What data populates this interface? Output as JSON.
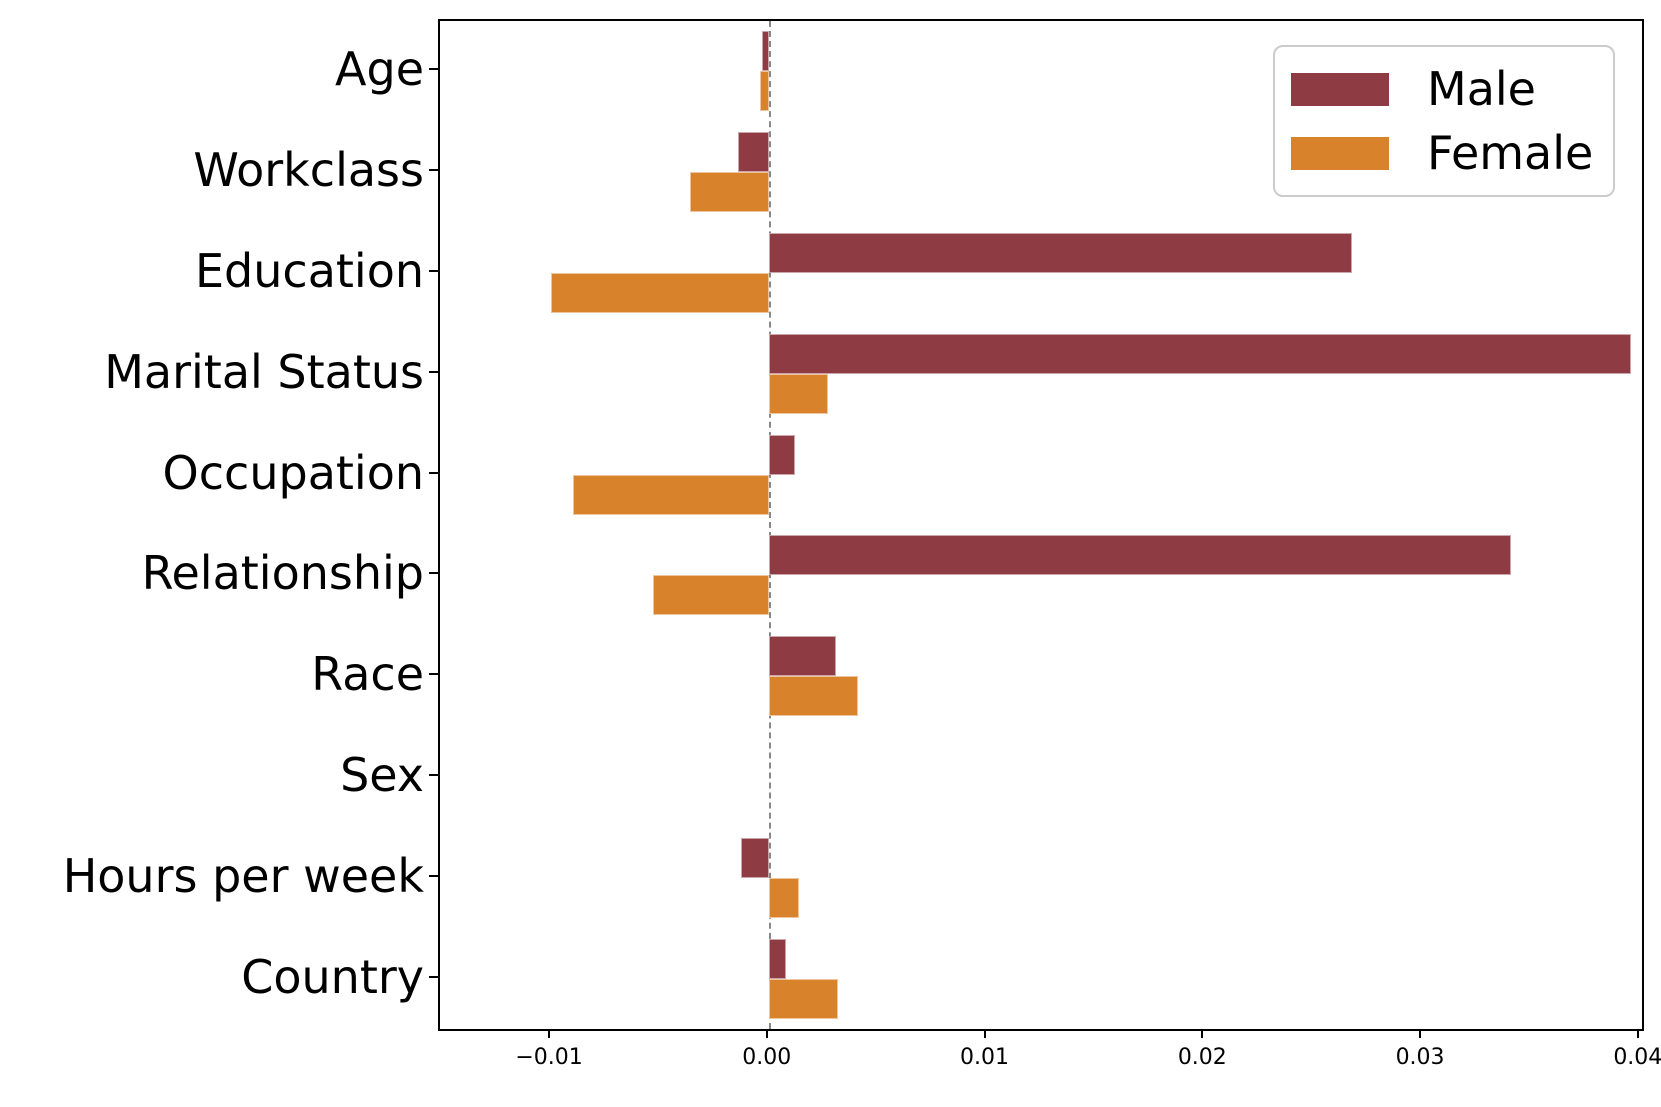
{
  "chart_data": {
    "type": "bar",
    "orientation": "horizontal",
    "title": "",
    "xlabel": "",
    "ylabel": "",
    "categories": [
      "Age",
      "Workclass",
      "Education",
      "Marital Status",
      "Occupation",
      "Relationship",
      "Race",
      "Sex",
      "Hours per week",
      "Country"
    ],
    "series": [
      {
        "name": "Male",
        "color": "#8E3B44",
        "values": [
          -0.0003,
          -0.0014,
          0.0268,
          0.0396,
          0.0012,
          0.0341,
          0.0031,
          0.0,
          -0.0013,
          0.0008
        ]
      },
      {
        "name": "Female",
        "color": "#D8822C",
        "values": [
          -0.0004,
          -0.0036,
          -0.01,
          0.0027,
          -0.009,
          -0.0053,
          0.0041,
          0.0,
          0.0014,
          0.0032
        ]
      }
    ],
    "xlim": [
      -0.0151,
      0.0401
    ],
    "xticks": {
      "values": [
        -0.01,
        0,
        0.01,
        0.02,
        0.03,
        0.04
      ],
      "labels": [
        "−0.01",
        "0.00",
        "0.01",
        "0.02",
        "0.03",
        "0.04"
      ]
    },
    "zero_line": {
      "x": 0,
      "style": "dashed",
      "color": "#888888"
    },
    "grid": "off",
    "legend": {
      "position": "upper-right",
      "entries": [
        "Male",
        "Female"
      ]
    }
  }
}
